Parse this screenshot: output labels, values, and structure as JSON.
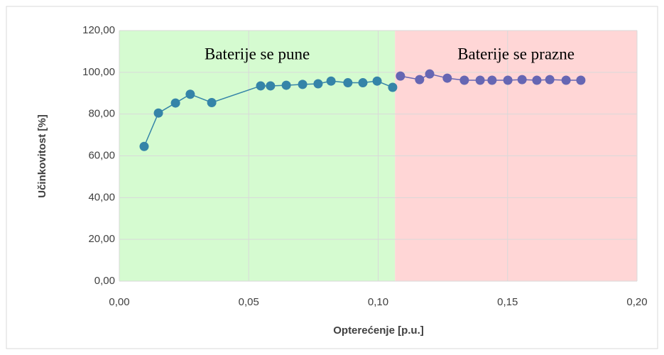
{
  "chart_data": {
    "type": "scatter",
    "xlabel": "Opterećenje [p.u.]",
    "ylabel": "Učinkovitost [%]",
    "xlim": [
      0,
      0.2
    ],
    "ylim": [
      0,
      120
    ],
    "xticks": [
      {
        "value": 0,
        "label": "0,00"
      },
      {
        "value": 0.05,
        "label": "0,05"
      },
      {
        "value": 0.1,
        "label": "0,10"
      },
      {
        "value": 0.15,
        "label": "0,15"
      },
      {
        "value": 0.2,
        "label": "0,20"
      }
    ],
    "yticks": [
      {
        "value": 0,
        "label": "0,00"
      },
      {
        "value": 20,
        "label": "20,00"
      },
      {
        "value": 40,
        "label": "40,00"
      },
      {
        "value": 60,
        "label": "60,00"
      },
      {
        "value": 80,
        "label": "80,00"
      },
      {
        "value": 100,
        "label": "100,00"
      },
      {
        "value": 120,
        "label": "120,00"
      }
    ],
    "grid": true,
    "regions": [
      {
        "label": "Baterije se pune",
        "xlim": [
          0,
          0.1065
        ],
        "color": "#d5fbd0"
      },
      {
        "label": "Baterije se prazne",
        "xlim": [
          0.1065,
          0.2
        ],
        "color": "#ffd6d6"
      }
    ],
    "series": [
      {
        "color": "#3584a8",
        "x": [
          0.0096,
          0.0151,
          0.0217,
          0.0274,
          0.0357,
          0.0546,
          0.0584,
          0.0645,
          0.0708,
          0.0768,
          0.0818,
          0.0883,
          0.0941,
          0.0996,
          0.1056
        ],
        "values": [
          64.5,
          80.5,
          85.3,
          89.5,
          85.5,
          93.5,
          93.5,
          93.8,
          94.2,
          94.5,
          95.8,
          95,
          95,
          95.8,
          92.8
        ]
      },
      {
        "color": "#6666b3",
        "x": [
          0.1086,
          0.116,
          0.1199,
          0.1267,
          0.1333,
          0.1394,
          0.144,
          0.1501,
          0.1556,
          0.1613,
          0.1663,
          0.1726,
          0.1783
        ],
        "values": [
          98.2,
          96.5,
          99.2,
          97.2,
          96.2,
          96.2,
          96.2,
          96.2,
          96.5,
          96.2,
          96.5,
          96.2,
          96.2
        ]
      }
    ]
  }
}
